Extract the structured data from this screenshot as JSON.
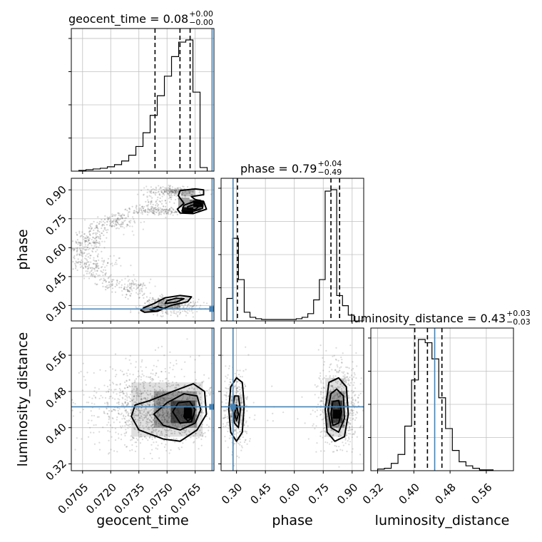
{
  "parameters": [
    "geocent_time",
    "phase",
    "luminosity_distance"
  ],
  "colors": {
    "truth": "#4682b4",
    "hist": "#000000",
    "grid": "#c0c0c0",
    "density": "#000000"
  },
  "chart_data": {
    "type": "corner",
    "grid": true,
    "titles": [
      {
        "param": "geocent_time",
        "text": "geocent_time = 0.08",
        "plus": "+0.00",
        "minus": "−0.00"
      },
      {
        "param": "phase",
        "text": "phase = 0.79",
        "plus": "+0.04",
        "minus": "−0.49"
      },
      {
        "param": "luminosity_distance",
        "text": "luminosity_distance = 0.43",
        "plus": "+0.03",
        "minus": "−0.03"
      }
    ],
    "xlabels": [
      "geocent_time",
      "phase",
      "luminosity_distance"
    ],
    "ylabels": [
      "phase",
      "luminosity_distance"
    ],
    "ranges": {
      "geocent_time": [
        0.0699,
        0.0775
      ],
      "phase": [
        0.22,
        0.96
      ],
      "luminosity_distance": [
        0.305,
        0.62
      ]
    },
    "ticks": {
      "geocent_time": {
        "values": [
          0.0705,
          0.072,
          0.0735,
          0.075,
          0.0765
        ],
        "labels": [
          "0.0705",
          "0.0720",
          "0.0735",
          "0.0750",
          "0.0765"
        ]
      },
      "phase": {
        "values": [
          0.3,
          0.45,
          0.6,
          0.75,
          0.9
        ],
        "labels": [
          "0.30",
          "0.45",
          "0.60",
          "0.75",
          "0.90"
        ]
      },
      "luminosity_distance": {
        "values": [
          0.32,
          0.4,
          0.48,
          0.56
        ],
        "labels": [
          "0.32",
          "0.40",
          "0.48",
          "0.56"
        ]
      }
    },
    "truths": {
      "geocent_time": 0.0774,
      "phase": 0.282,
      "luminosity_distance": 0.446
    },
    "quantiles": {
      "geocent_time": [
        0.07436,
        0.07569,
        0.07623
      ],
      "phase": [
        0.305,
        0.79,
        0.835
      ],
      "luminosity_distance": [
        0.402,
        0.43,
        0.462
      ]
    },
    "histograms": {
      "geocent_time": {
        "edges": [
          0.0703,
          0.07068,
          0.07106,
          0.07144,
          0.07182,
          0.0722,
          0.07258,
          0.07296,
          0.07334,
          0.07372,
          0.0741,
          0.07448,
          0.07486,
          0.07524,
          0.07562,
          0.076,
          0.07638,
          0.07676,
          0.07714
        ],
        "counts": [
          1,
          2,
          3,
          4,
          6,
          9,
          14,
          22,
          34,
          53,
          77,
          104,
          131,
          158,
          178,
          181,
          109,
          5
        ]
      },
      "phase": {
        "edges": [
          0.25,
          0.28,
          0.31,
          0.34,
          0.37,
          0.4,
          0.43,
          0.46,
          0.49,
          0.52,
          0.55,
          0.58,
          0.61,
          0.64,
          0.67,
          0.7,
          0.73,
          0.76,
          0.79,
          0.82,
          0.85,
          0.88,
          0.91
        ],
        "counts": [
          31,
          114,
          57,
          12,
          5,
          3,
          2,
          2,
          2,
          2,
          2,
          2,
          3,
          5,
          10,
          29,
          57,
          179,
          181,
          35,
          21,
          8
        ]
      },
      "luminosity_distance": {
        "edges": [
          0.32,
          0.335,
          0.35,
          0.365,
          0.38,
          0.395,
          0.41,
          0.425,
          0.44,
          0.455,
          0.47,
          0.485,
          0.5,
          0.515,
          0.53,
          0.545,
          0.56,
          0.575
        ],
        "counts": [
          2,
          3,
          9,
          20,
          55,
          112,
          162,
          158,
          138,
          90,
          52,
          25,
          11,
          6,
          3,
          1,
          1
        ]
      }
    },
    "pairs": [
      {
        "x": "geocent_time",
        "y": "phase",
        "density": [
          {
            "x": [
              0.07515,
              0.07575
            ],
            "y": [
              0.885,
              0.905
            ],
            "level": 0.15
          },
          {
            "x": [
              0.07575,
              0.0765
            ],
            "y": [
              0.865,
              0.905
            ],
            "level": 0.25
          },
          {
            "x": [
              0.0756,
              0.0762
            ],
            "y": [
              0.81,
              0.86
            ],
            "level": 0.35
          },
          {
            "x": [
              0.0762,
              0.0768
            ],
            "y": [
              0.79,
              0.85
            ],
            "level": 0.55
          },
          {
            "x": [
              0.0758,
              0.0764
            ],
            "y": [
              0.78,
              0.81
            ],
            "level": 0.95
          },
          {
            "x": [
              0.0764,
              0.07695
            ],
            "y": [
              0.81,
              0.845
            ],
            "level": 0.95
          },
          {
            "x": [
              0.0737,
              0.0745
            ],
            "y": [
              0.27,
              0.295
            ],
            "level": 0.35
          },
          {
            "x": [
              0.0745,
              0.0757
            ],
            "y": [
              0.285,
              0.335
            ],
            "level": 0.25
          },
          {
            "x": [
              0.0757,
              0.0762
            ],
            "y": [
              0.32,
              0.345
            ],
            "level": 0.15
          }
        ],
        "contours": [
          [
            [
              0.07555,
              0.8
            ],
            [
              0.0757,
              0.78
            ],
            [
              0.0764,
              0.777
            ],
            [
              0.0771,
              0.8
            ],
            [
              0.07695,
              0.84
            ],
            [
              0.0765,
              0.85
            ],
            [
              0.0763,
              0.865
            ],
            [
              0.07695,
              0.875
            ],
            [
              0.07695,
              0.9
            ],
            [
              0.0765,
              0.905
            ],
            [
              0.0757,
              0.896
            ],
            [
              0.0756,
              0.87
            ],
            [
              0.0759,
              0.83
            ]
          ],
          [
            [
              0.0758,
              0.79
            ],
            [
              0.0763,
              0.785
            ],
            [
              0.0769,
              0.805
            ],
            [
              0.0768,
              0.83
            ],
            [
              0.0764,
              0.838
            ],
            [
              0.0759,
              0.82
            ]
          ],
          [
            [
              0.0761,
              0.8
            ],
            [
              0.0765,
              0.797
            ],
            [
              0.0767,
              0.815
            ],
            [
              0.0764,
              0.822
            ],
            [
              0.0761,
              0.813
            ]
          ],
          [
            [
              0.0736,
              0.275
            ],
            [
              0.0738,
              0.265
            ],
            [
              0.0745,
              0.27
            ],
            [
              0.0752,
              0.3
            ],
            [
              0.0761,
              0.32
            ],
            [
              0.0763,
              0.345
            ],
            [
              0.0757,
              0.352
            ],
            [
              0.0749,
              0.34
            ],
            [
              0.0743,
              0.31
            ],
            [
              0.0738,
              0.29
            ]
          ],
          [
            [
              0.0741,
              0.278
            ],
            [
              0.0744,
              0.27
            ],
            [
              0.0748,
              0.285
            ],
            [
              0.0745,
              0.295
            ]
          ],
          [
            [
              0.0749,
              0.31
            ],
            [
              0.0755,
              0.318
            ],
            [
              0.0759,
              0.335
            ],
            [
              0.0755,
              0.338
            ],
            [
              0.075,
              0.325
            ]
          ]
        ],
        "points": [
          {
            "x": [
              0.0739,
              0.0768
            ],
            "y": [
              0.86,
              0.92
            ],
            "n": 240
          },
          {
            "x": [
              0.0731,
              0.0758
            ],
            "y": [
              0.77,
              0.81
            ],
            "n": 160
          },
          {
            "x": [
              0.0714,
              0.0735
            ],
            "y": [
              0.69,
              0.77
            ],
            "n": 90
          },
          {
            "x": [
              0.0702,
              0.0716
            ],
            "y": [
              0.58,
              0.7
            ],
            "n": 80
          },
          {
            "x": [
              0.0706,
              0.0725
            ],
            "y": [
              0.44,
              0.58
            ],
            "n": 70
          },
          {
            "x": [
              0.0722,
              0.0742
            ],
            "y": [
              0.36,
              0.44
            ],
            "n": 70
          },
          {
            "x": [
              0.0736,
              0.0768
            ],
            "y": [
              0.24,
              0.35
            ],
            "n": 240
          }
        ]
      },
      {
        "x": "geocent_time",
        "y": "luminosity_distance",
        "density": [
          {
            "x": [
              0.0731,
              0.0769
            ],
            "y": [
              0.38,
              0.5
            ],
            "level": 0.12
          },
          {
            "x": [
              0.0743,
              0.0766
            ],
            "y": [
              0.4,
              0.48
            ],
            "level": 0.3
          },
          {
            "x": [
              0.0752,
              0.0765
            ],
            "y": [
              0.41,
              0.46
            ],
            "level": 0.55
          },
          {
            "x": [
              0.0759,
              0.0763
            ],
            "y": [
              0.42,
              0.445
            ],
            "level": 0.95
          }
        ],
        "contours": [
          [
            [
              0.0731,
              0.425
            ],
            [
              0.0735,
              0.395
            ],
            [
              0.0748,
              0.375
            ],
            [
              0.0757,
              0.37
            ],
            [
              0.0766,
              0.395
            ],
            [
              0.0771,
              0.43
            ],
            [
              0.077,
              0.48
            ],
            [
              0.0764,
              0.497
            ],
            [
              0.0753,
              0.48
            ],
            [
              0.0741,
              0.46
            ],
            [
              0.0733,
              0.45
            ]
          ],
          [
            [
              0.0743,
              0.43
            ],
            [
              0.0748,
              0.405
            ],
            [
              0.0757,
              0.395
            ],
            [
              0.0765,
              0.41
            ],
            [
              0.0768,
              0.44
            ],
            [
              0.0766,
              0.47
            ],
            [
              0.0759,
              0.475
            ],
            [
              0.075,
              0.455
            ]
          ],
          [
            [
              0.0753,
              0.435
            ],
            [
              0.0757,
              0.41
            ],
            [
              0.0763,
              0.413
            ],
            [
              0.0765,
              0.44
            ],
            [
              0.0762,
              0.458
            ],
            [
              0.0756,
              0.455
            ]
          ],
          [
            [
              0.0759,
              0.425
            ],
            [
              0.0761,
              0.415
            ],
            [
              0.0763,
              0.42
            ],
            [
              0.0763,
              0.44
            ],
            [
              0.076,
              0.443
            ]
          ]
        ],
        "points": [
          {
            "x": [
              0.0701,
              0.0774
            ],
            "y": [
              0.37,
              0.54
            ],
            "n": 650
          },
          {
            "x": [
              0.0724,
              0.0773
            ],
            "y": [
              0.36,
              0.5
            ],
            "n": 700
          }
        ]
      },
      {
        "x": "phase",
        "y": "luminosity_distance",
        "density": [
          {
            "x": [
              0.27,
              0.33
            ],
            "y": [
              0.41,
              0.47
            ],
            "level": 0.15
          },
          {
            "x": [
              0.28,
              0.31
            ],
            "y": [
              0.42,
              0.45
            ],
            "level": 0.4
          },
          {
            "x": [
              0.76,
              0.87
            ],
            "y": [
              0.38,
              0.51
            ],
            "level": 0.12
          },
          {
            "x": [
              0.77,
              0.86
            ],
            "y": [
              0.4,
              0.48
            ],
            "level": 0.3
          },
          {
            "x": [
              0.79,
              0.85
            ],
            "y": [
              0.41,
              0.46
            ],
            "level": 0.55
          },
          {
            "x": [
              0.8,
              0.84
            ],
            "y": [
              0.42,
              0.44
            ],
            "level": 0.95
          }
        ],
        "contours": [
          [
            [
              0.26,
              0.44
            ],
            [
              0.27,
              0.39
            ],
            [
              0.3,
              0.37
            ],
            [
              0.33,
              0.39
            ],
            [
              0.34,
              0.45
            ],
            [
              0.33,
              0.5
            ],
            [
              0.3,
              0.51
            ],
            [
              0.27,
              0.49
            ]
          ],
          [
            [
              0.28,
              0.44
            ],
            [
              0.29,
              0.41
            ],
            [
              0.31,
              0.4
            ],
            [
              0.32,
              0.44
            ],
            [
              0.31,
              0.47
            ],
            [
              0.29,
              0.47
            ]
          ],
          [
            [
              0.29,
              0.43
            ],
            [
              0.3,
              0.415
            ],
            [
              0.31,
              0.43
            ],
            [
              0.3,
              0.45
            ]
          ],
          [
            [
              0.76,
              0.44
            ],
            [
              0.77,
              0.39
            ],
            [
              0.81,
              0.37
            ],
            [
              0.86,
              0.38
            ],
            [
              0.88,
              0.43
            ],
            [
              0.87,
              0.49
            ],
            [
              0.83,
              0.51
            ],
            [
              0.78,
              0.5
            ]
          ],
          [
            [
              0.775,
              0.44
            ],
            [
              0.79,
              0.4
            ],
            [
              0.83,
              0.39
            ],
            [
              0.86,
              0.42
            ],
            [
              0.855,
              0.47
            ],
            [
              0.82,
              0.485
            ],
            [
              0.79,
              0.475
            ]
          ],
          [
            [
              0.79,
              0.43
            ],
            [
              0.8,
              0.405
            ],
            [
              0.83,
              0.41
            ],
            [
              0.845,
              0.435
            ],
            [
              0.83,
              0.46
            ],
            [
              0.8,
              0.458
            ]
          ]
        ],
        "points": [
          {
            "x": [
              0.23,
              0.36
            ],
            "y": [
              0.35,
              0.53
            ],
            "n": 360
          },
          {
            "x": [
              0.72,
              0.94
            ],
            "y": [
              0.35,
              0.54
            ],
            "n": 650
          },
          {
            "x": [
              0.36,
              0.72
            ],
            "y": [
              0.38,
              0.5
            ],
            "n": 12
          }
        ]
      }
    ]
  }
}
